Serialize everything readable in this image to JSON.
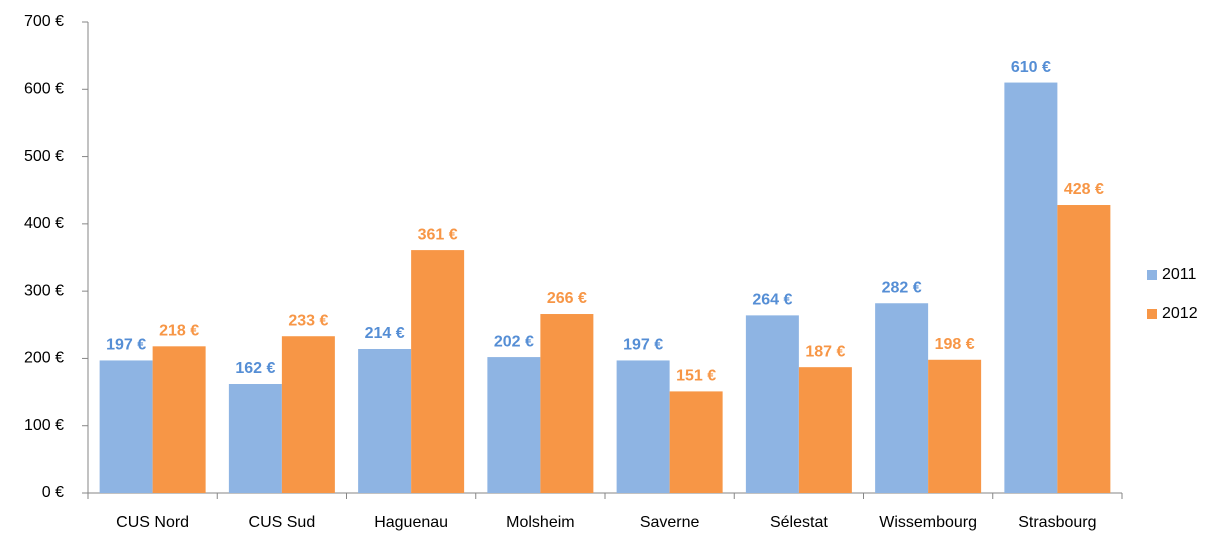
{
  "chart_data": {
    "type": "bar",
    "categories": [
      "CUS Nord",
      "CUS Sud",
      "Haguenau",
      "Molsheim",
      "Saverne",
      "Sélestat",
      "Wissembourg",
      "Strasbourg"
    ],
    "series": [
      {
        "name": "2011",
        "color": "#8eb4e3",
        "label_color": "#558ed5",
        "values": [
          197,
          162,
          214,
          202,
          197,
          264,
          282,
          610
        ],
        "value_labels": [
          "197 €",
          "162 €",
          "214 €",
          "202 €",
          "197 €",
          "264 €",
          "282 €",
          "610 €"
        ]
      },
      {
        "name": "2012",
        "color": "#f79646",
        "label_color": "#f79646",
        "values": [
          218,
          233,
          361,
          266,
          151,
          187,
          198,
          428
        ],
        "value_labels": [
          "218 €",
          "233 €",
          "361 €",
          "266 €",
          "151 €",
          "187 €",
          "198 €",
          "428 €"
        ]
      }
    ],
    "ylim": [
      0,
      700
    ],
    "yticks": [
      {
        "value": 0,
        "label": "0 €"
      },
      {
        "value": 100,
        "label": "100 €"
      },
      {
        "value": 200,
        "label": "200 €"
      },
      {
        "value": 300,
        "label": "300 €"
      },
      {
        "value": 400,
        "label": "400 €"
      },
      {
        "value": 500,
        "label": "500 €"
      },
      {
        "value": 600,
        "label": "600 €"
      },
      {
        "value": 700,
        "label": "700 €"
      }
    ],
    "grid": false,
    "legend": "right"
  }
}
